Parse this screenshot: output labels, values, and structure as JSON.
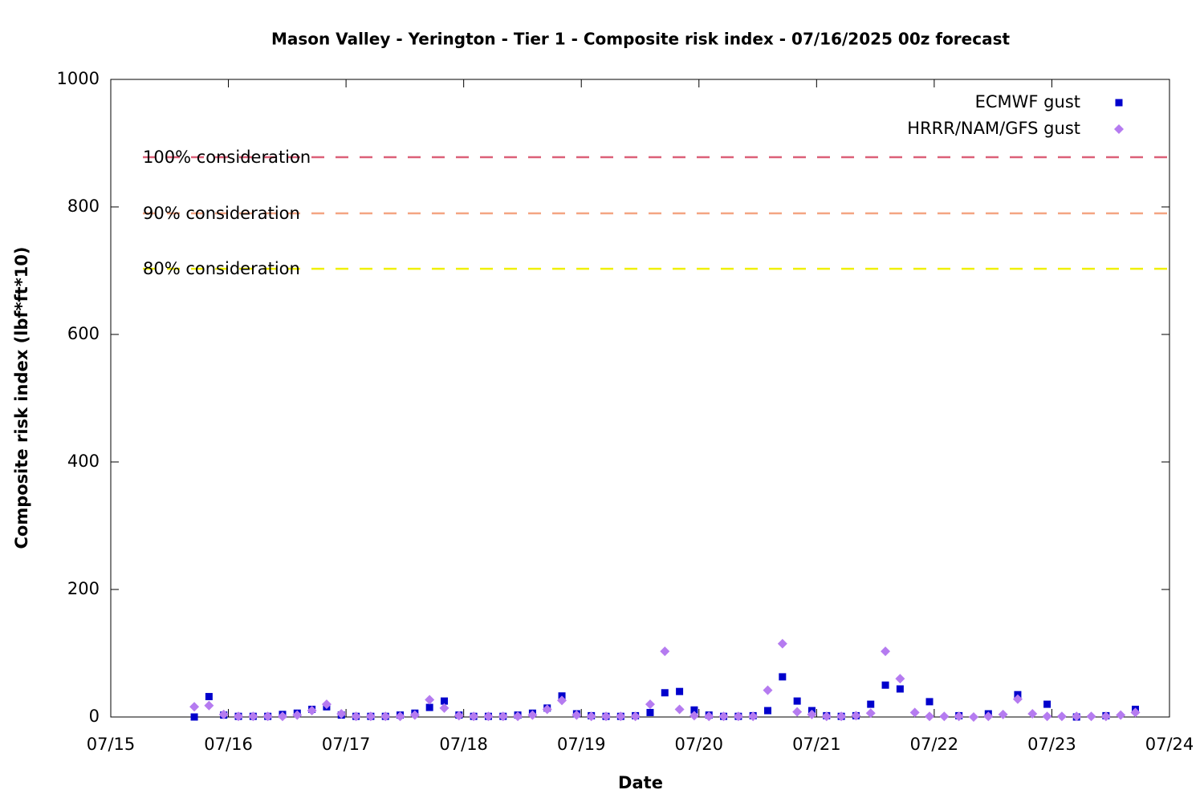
{
  "chart_data": {
    "type": "scatter",
    "title": "Mason Valley - Yerington - Tier 1 - Composite risk index - 07/16/2025 00z forecast",
    "x_label": "Date",
    "y_label": "Composite risk index (lbf*ft*10)",
    "xlim": [
      15,
      24
    ],
    "xticks": [
      {
        "value": 15,
        "label": "07/15"
      },
      {
        "value": 16,
        "label": "07/16"
      },
      {
        "value": 17,
        "label": "07/17"
      },
      {
        "value": 18,
        "label": "07/18"
      },
      {
        "value": 19,
        "label": "07/19"
      },
      {
        "value": 20,
        "label": "07/20"
      },
      {
        "value": 21,
        "label": "07/21"
      },
      {
        "value": 22,
        "label": "07/22"
      },
      {
        "value": 23,
        "label": "07/23"
      },
      {
        "value": 24,
        "label": "07/24"
      }
    ],
    "ylim": [
      0,
      1000
    ],
    "yticks": [
      0,
      200,
      400,
      600,
      800,
      1000
    ],
    "grid": false,
    "legend": "top-right",
    "reference_lines": [
      {
        "label": "100% consideration",
        "value": 878,
        "color": "#dc6078"
      },
      {
        "label": "90% consideration",
        "value": 790,
        "color": "#f4a582"
      },
      {
        "label": "80% consideration",
        "value": 703,
        "color": "#f0f000"
      }
    ],
    "series": [
      {
        "name": "ECMWF gust",
        "color": "#0000cc",
        "marker": "square",
        "x": [
          15.71,
          15.835,
          15.96,
          16.085,
          16.21,
          16.335,
          16.46,
          16.585,
          16.71,
          16.835,
          16.96,
          17.085,
          17.21,
          17.335,
          17.46,
          17.585,
          17.71,
          17.835,
          17.96,
          18.085,
          18.21,
          18.335,
          18.46,
          18.585,
          18.71,
          18.835,
          18.96,
          19.085,
          19.21,
          19.335,
          19.46,
          19.585,
          19.71,
          19.835,
          19.96,
          20.085,
          20.21,
          20.335,
          20.46,
          20.585,
          20.71,
          20.835,
          20.96,
          21.085,
          21.21,
          21.335,
          21.46,
          21.585,
          21.71,
          21.96,
          22.21,
          22.46,
          22.71,
          22.96,
          23.21,
          23.46,
          23.71
        ],
        "values": [
          0,
          32,
          3,
          1,
          1,
          1,
          4,
          6,
          12,
          16,
          3,
          1,
          1,
          1,
          3,
          6,
          15,
          25,
          3,
          1,
          1,
          1,
          3,
          6,
          14,
          33,
          5,
          2,
          1,
          1,
          2,
          7,
          38,
          40,
          11,
          3,
          1,
          1,
          2,
          10,
          63,
          25,
          10,
          2,
          1,
          2,
          20,
          50,
          44,
          24,
          2,
          5,
          35,
          20,
          0,
          2,
          12
        ]
      },
      {
        "name": "HRRR/NAM/GFS gust",
        "color": "#b57bf0",
        "marker": "diamond",
        "x": [
          15.71,
          15.835,
          15.96,
          16.085,
          16.21,
          16.335,
          16.46,
          16.585,
          16.71,
          16.835,
          16.96,
          17.085,
          17.21,
          17.335,
          17.46,
          17.585,
          17.71,
          17.835,
          17.96,
          18.085,
          18.21,
          18.335,
          18.46,
          18.585,
          18.71,
          18.835,
          18.96,
          19.085,
          19.21,
          19.335,
          19.46,
          19.585,
          19.71,
          19.835,
          19.96,
          20.085,
          20.21,
          20.335,
          20.46,
          20.585,
          20.71,
          20.835,
          20.96,
          21.085,
          21.21,
          21.335,
          21.46,
          21.585,
          21.71,
          21.835,
          21.96,
          22.085,
          22.21,
          22.335,
          22.46,
          22.585,
          22.71,
          22.835,
          22.96,
          23.085,
          23.21,
          23.335,
          23.46,
          23.585,
          23.71
        ],
        "values": [
          16,
          18,
          4,
          1,
          1,
          1,
          1,
          3,
          10,
          20,
          5,
          1,
          1,
          1,
          1,
          3,
          27,
          14,
          2,
          1,
          1,
          1,
          1,
          3,
          12,
          26,
          3,
          1,
          1,
          1,
          1,
          20,
          103,
          12,
          2,
          1,
          1,
          1,
          1,
          42,
          115,
          8,
          4,
          1,
          1,
          2,
          6,
          103,
          60,
          7,
          1,
          1,
          1,
          0,
          1,
          4,
          28,
          5,
          1,
          1,
          1,
          1,
          1,
          3,
          7
        ]
      }
    ]
  }
}
